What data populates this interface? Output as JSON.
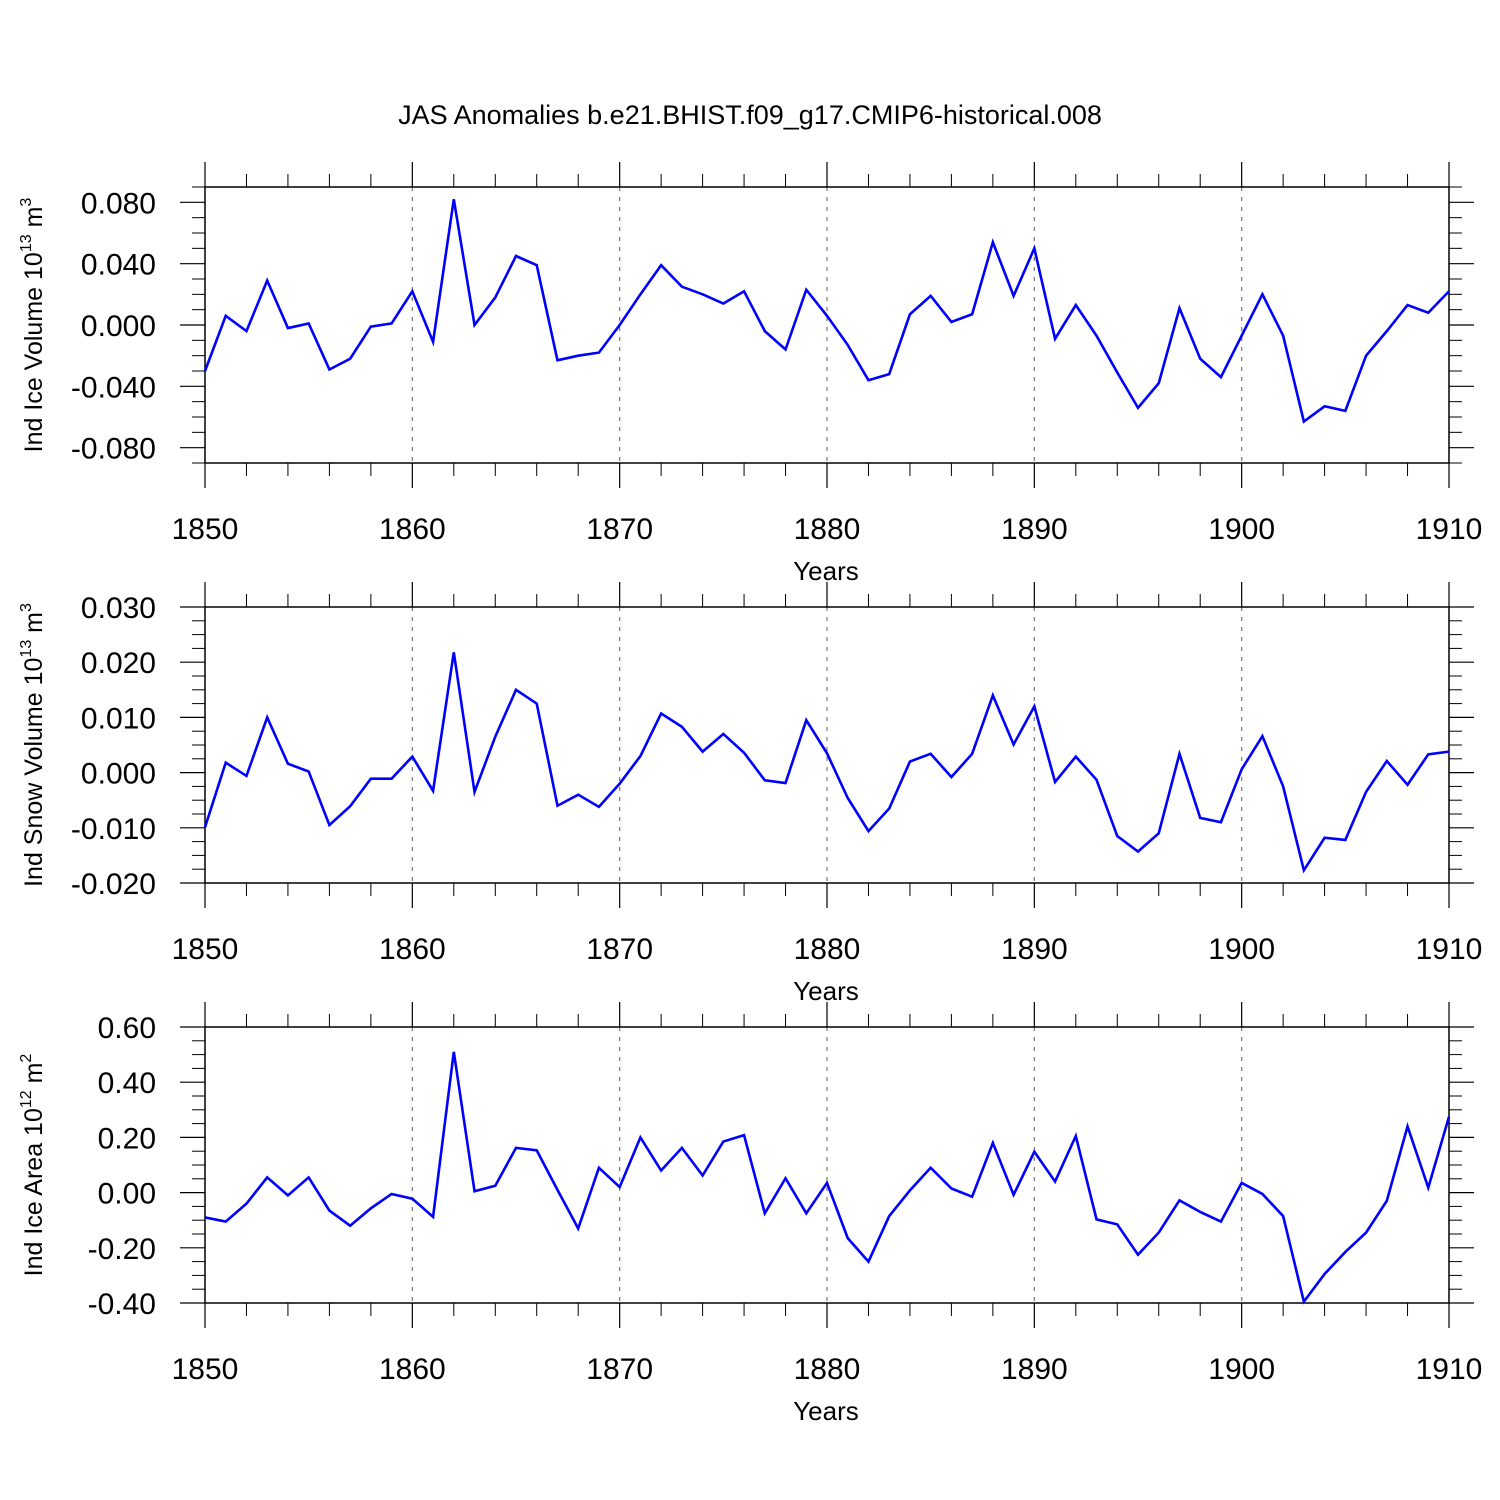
{
  "figure_title": "JAS Anomalies b.e21.BHIST.f09_g17.CMIP6-historical.008",
  "line_color": "#0000ff",
  "chart_data": [
    {
      "type": "line",
      "ylabel": "Ind Ice Volume 10",
      "ylabel_exp": "13",
      "ylabel_unit": "m",
      "ylabel_unit_exp": "3",
      "xlabel": "Years",
      "xlim": [
        1850,
        1910
      ],
      "ylim": [
        -0.09,
        0.09
      ],
      "yticks": [
        -0.08,
        -0.04,
        0.0,
        0.04,
        0.08
      ],
      "ytick_labels": [
        "-0.080",
        "-0.040",
        "0.000",
        "0.040",
        "0.080"
      ],
      "xticks": [
        1850,
        1860,
        1870,
        1880,
        1890,
        1900,
        1910
      ],
      "xtick_labels": [
        "1850",
        "1860",
        "1870",
        "1880",
        "1890",
        "1900",
        "1910"
      ],
      "x_start": 1850,
      "values": [
        -0.03,
        0.006,
        -0.004,
        0.029,
        -0.002,
        0.001,
        -0.029,
        -0.022,
        -0.001,
        0.001,
        0.022,
        -0.011,
        0.082,
        0.0,
        0.018,
        0.045,
        0.039,
        -0.023,
        -0.02,
        -0.018,
        0.0,
        0.02,
        0.039,
        0.025,
        0.02,
        0.014,
        0.022,
        -0.004,
        -0.016,
        0.023,
        0.006,
        -0.013,
        -0.036,
        -0.032,
        0.007,
        0.019,
        0.002,
        0.007,
        0.054,
        0.019,
        0.05,
        -0.009,
        0.013,
        -0.007,
        -0.031,
        -0.054,
        -0.038,
        0.011,
        -0.022,
        -0.034,
        -0.007,
        0.02,
        -0.007,
        -0.063,
        -0.053,
        -0.056,
        -0.02,
        -0.004,
        0.013,
        0.008,
        0.022
      ]
    },
    {
      "type": "line",
      "ylabel": "Ind Snow Volume 10",
      "ylabel_exp": "13",
      "ylabel_unit": "m",
      "ylabel_unit_exp": "3",
      "xlabel": "Years",
      "xlim": [
        1850,
        1910
      ],
      "ylim": [
        -0.02,
        0.03
      ],
      "yticks": [
        -0.02,
        -0.01,
        0.0,
        0.01,
        0.02,
        0.03
      ],
      "ytick_labels": [
        "-0.020",
        "-0.010",
        "0.000",
        "0.010",
        "0.020",
        "0.030"
      ],
      "xticks": [
        1850,
        1860,
        1870,
        1880,
        1890,
        1900,
        1910
      ],
      "xtick_labels": [
        "1850",
        "1860",
        "1870",
        "1880",
        "1890",
        "1900",
        "1910"
      ],
      "x_start": 1850,
      "values": [
        -0.0099,
        0.0018,
        -0.0006,
        0.01,
        0.0016,
        0.0002,
        -0.0095,
        -0.0061,
        -0.0011,
        -0.0011,
        0.0029,
        -0.0033,
        0.0218,
        -0.0035,
        0.0065,
        0.015,
        0.0125,
        -0.006,
        -0.004,
        -0.0062,
        -0.002,
        0.003,
        0.0107,
        0.0083,
        0.0038,
        0.007,
        0.0036,
        -0.0014,
        -0.0019,
        0.0095,
        0.0035,
        -0.0046,
        -0.0106,
        -0.0065,
        0.002,
        0.0034,
        -0.0008,
        0.0034,
        0.014,
        0.0051,
        0.012,
        -0.0017,
        0.0029,
        -0.0013,
        -0.0115,
        -0.0143,
        -0.011,
        0.0034,
        -0.0082,
        -0.009,
        0.0006,
        0.0066,
        -0.0025,
        -0.0177,
        -0.0118,
        -0.0122,
        -0.0035,
        0.0021,
        -0.0022,
        0.0033,
        0.0038
      ]
    },
    {
      "type": "line",
      "ylabel": "Ind Ice Area 10",
      "ylabel_exp": "12",
      "ylabel_unit": "m",
      "ylabel_unit_exp": "2",
      "xlabel": "Years",
      "xlim": [
        1850,
        1910
      ],
      "ylim": [
        -0.4,
        0.6
      ],
      "yticks": [
        -0.4,
        -0.2,
        0.0,
        0.2,
        0.4,
        0.6
      ],
      "ytick_labels": [
        "-0.40",
        "-0.20",
        "0.00",
        "0.20",
        "0.40",
        "0.60"
      ],
      "xticks": [
        1850,
        1860,
        1870,
        1880,
        1890,
        1900,
        1910
      ],
      "xtick_labels": [
        "1850",
        "1860",
        "1870",
        "1880",
        "1890",
        "1900",
        "1910"
      ],
      "x_start": 1850,
      "values": [
        -0.09,
        -0.105,
        -0.04,
        0.055,
        -0.01,
        0.055,
        -0.065,
        -0.12,
        -0.057,
        -0.005,
        -0.022,
        -0.088,
        0.51,
        0.005,
        0.025,
        0.162,
        0.153,
        0.01,
        -0.13,
        0.09,
        0.02,
        0.2,
        0.08,
        0.162,
        0.062,
        0.185,
        0.208,
        -0.075,
        0.052,
        -0.075,
        0.035,
        -0.165,
        -0.25,
        -0.085,
        0.008,
        0.09,
        0.015,
        -0.015,
        0.18,
        -0.008,
        0.148,
        0.04,
        0.205,
        -0.097,
        -0.115,
        -0.225,
        -0.145,
        -0.028,
        -0.07,
        -0.105,
        0.035,
        -0.005,
        -0.085,
        -0.395,
        -0.295,
        -0.215,
        -0.145,
        -0.03,
        0.24,
        0.018,
        0.275
      ]
    }
  ]
}
